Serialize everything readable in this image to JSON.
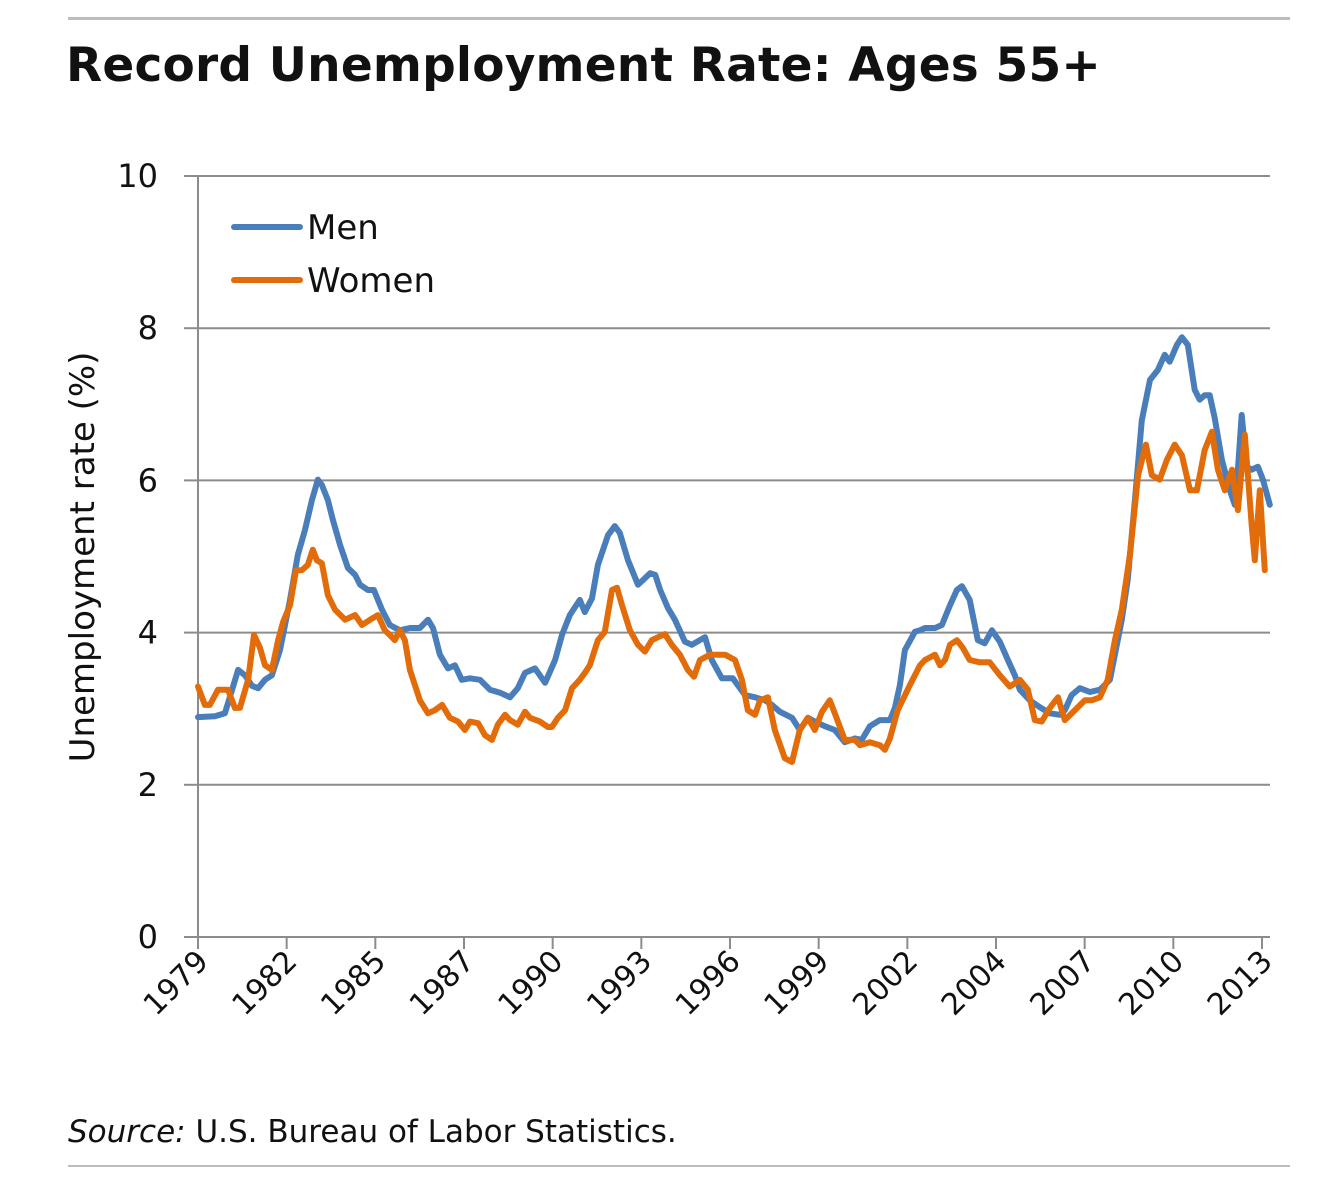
{
  "title": "Record Unemployment Rate: Ages 55+",
  "source": {
    "label": "Source:",
    "text": " U.S. Bureau of Labor Statistics."
  },
  "chart_data": {
    "type": "line",
    "title": "Record Unemployment Rate: Ages 55+",
    "xlabel": "",
    "ylabel": "Unemployment rate (%)",
    "ylim": [
      0,
      10
    ],
    "xlim": [
      1979,
      2013.3
    ],
    "yticks": [
      0,
      2,
      4,
      6,
      8,
      10
    ],
    "xtick_labels": [
      "1979",
      "1982",
      "1985",
      "1987",
      "1990",
      "1993",
      "1996",
      "1999",
      "2002",
      "2004",
      "2007",
      "2010",
      "2013"
    ],
    "grid": "horizontal",
    "legend_position": "top-left",
    "colors": {
      "Men": "#4a7ebb",
      "Women": "#e36c0a"
    },
    "series": [
      {
        "name": "Men",
        "points": [
          [
            1979.0,
            2.89
          ],
          [
            1979.54,
            2.9
          ],
          [
            1979.86,
            2.94
          ],
          [
            1980.09,
            3.25
          ],
          [
            1980.28,
            3.51
          ],
          [
            1980.5,
            3.44
          ],
          [
            1980.73,
            3.3
          ],
          [
            1980.92,
            3.27
          ],
          [
            1981.14,
            3.38
          ],
          [
            1981.36,
            3.44
          ],
          [
            1981.62,
            3.77
          ],
          [
            1981.94,
            4.43
          ],
          [
            1982.19,
            5.02
          ],
          [
            1982.42,
            5.35
          ],
          [
            1982.64,
            5.74
          ],
          [
            1982.83,
            6.01
          ],
          [
            1982.96,
            5.94
          ],
          [
            1983.15,
            5.74
          ],
          [
            1983.31,
            5.48
          ],
          [
            1983.54,
            5.15
          ],
          [
            1983.79,
            4.85
          ],
          [
            1984.02,
            4.76
          ],
          [
            1984.18,
            4.63
          ],
          [
            1984.43,
            4.56
          ],
          [
            1984.62,
            4.56
          ],
          [
            1984.88,
            4.3
          ],
          [
            1985.13,
            4.1
          ],
          [
            1985.45,
            4.03
          ],
          [
            1985.77,
            4.06
          ],
          [
            1986.09,
            4.06
          ],
          [
            1986.35,
            4.17
          ],
          [
            1986.51,
            4.06
          ],
          [
            1986.73,
            3.71
          ],
          [
            1986.99,
            3.53
          ],
          [
            1987.21,
            3.57
          ],
          [
            1987.43,
            3.38
          ],
          [
            1987.69,
            3.4
          ],
          [
            1988.01,
            3.38
          ],
          [
            1988.33,
            3.25
          ],
          [
            1988.65,
            3.21
          ],
          [
            1988.97,
            3.15
          ],
          [
            1989.22,
            3.27
          ],
          [
            1989.45,
            3.47
          ],
          [
            1989.77,
            3.53
          ],
          [
            1990.09,
            3.34
          ],
          [
            1990.41,
            3.64
          ],
          [
            1990.63,
            3.97
          ],
          [
            1990.88,
            4.23
          ],
          [
            1991.2,
            4.43
          ],
          [
            1991.36,
            4.27
          ],
          [
            1991.59,
            4.45
          ],
          [
            1991.78,
            4.89
          ],
          [
            1992.1,
            5.28
          ],
          [
            1992.32,
            5.4
          ],
          [
            1992.48,
            5.31
          ],
          [
            1992.74,
            4.95
          ],
          [
            1993.06,
            4.63
          ],
          [
            1993.22,
            4.69
          ],
          [
            1993.45,
            4.78
          ],
          [
            1993.61,
            4.76
          ],
          [
            1993.77,
            4.56
          ],
          [
            1994.02,
            4.32
          ],
          [
            1994.24,
            4.17
          ],
          [
            1994.56,
            3.88
          ],
          [
            1994.78,
            3.84
          ],
          [
            1995.2,
            3.94
          ],
          [
            1995.42,
            3.64
          ],
          [
            1995.74,
            3.4
          ],
          [
            1996.09,
            3.4
          ],
          [
            1996.48,
            3.18
          ],
          [
            1996.8,
            3.15
          ],
          [
            1997.12,
            3.11
          ],
          [
            1997.34,
            3.05
          ],
          [
            1997.59,
            2.96
          ],
          [
            1997.98,
            2.88
          ],
          [
            1998.23,
            2.72
          ],
          [
            1998.49,
            2.88
          ],
          [
            1998.71,
            2.83
          ],
          [
            1999.03,
            2.77
          ],
          [
            1999.35,
            2.72
          ],
          [
            1999.67,
            2.56
          ],
          [
            1999.99,
            2.61
          ],
          [
            2000.21,
            2.59
          ],
          [
            2000.47,
            2.77
          ],
          [
            2000.79,
            2.85
          ],
          [
            2001.11,
            2.85
          ],
          [
            2001.27,
            3.01
          ],
          [
            2001.43,
            3.31
          ],
          [
            2001.59,
            3.77
          ],
          [
            2001.91,
            4.01
          ],
          [
            2002.07,
            4.03
          ],
          [
            2002.23,
            4.06
          ],
          [
            2002.55,
            4.06
          ],
          [
            2002.77,
            4.1
          ],
          [
            2003.03,
            4.36
          ],
          [
            2003.25,
            4.56
          ],
          [
            2003.41,
            4.61
          ],
          [
            2003.66,
            4.43
          ],
          [
            2003.92,
            3.9
          ],
          [
            2004.14,
            3.86
          ],
          [
            2004.37,
            4.03
          ],
          [
            2004.62,
            3.88
          ],
          [
            2004.88,
            3.64
          ],
          [
            2005.1,
            3.44
          ],
          [
            2005.26,
            3.25
          ],
          [
            2005.58,
            3.11
          ],
          [
            2005.9,
            3.02
          ],
          [
            2006.22,
            2.94
          ],
          [
            2006.54,
            2.92
          ],
          [
            2006.7,
            2.98
          ],
          [
            2006.92,
            3.18
          ],
          [
            2007.18,
            3.27
          ],
          [
            2007.5,
            3.22
          ],
          [
            2007.82,
            3.25
          ],
          [
            2008.14,
            3.38
          ],
          [
            2008.3,
            3.71
          ],
          [
            2008.52,
            4.17
          ],
          [
            2008.71,
            4.69
          ],
          [
            2008.94,
            5.74
          ],
          [
            2009.16,
            6.79
          ],
          [
            2009.42,
            7.32
          ],
          [
            2009.67,
            7.45
          ],
          [
            2009.89,
            7.65
          ],
          [
            2010.05,
            7.56
          ],
          [
            2010.28,
            7.78
          ],
          [
            2010.44,
            7.88
          ],
          [
            2010.63,
            7.78
          ],
          [
            2010.85,
            7.19
          ],
          [
            2011.01,
            7.06
          ],
          [
            2011.17,
            7.12
          ],
          [
            2011.33,
            7.12
          ],
          [
            2011.49,
            6.82
          ],
          [
            2011.72,
            6.27
          ],
          [
            2011.97,
            5.87
          ],
          [
            2012.13,
            5.68
          ],
          [
            2012.23,
            6.14
          ],
          [
            2012.35,
            6.86
          ],
          [
            2012.51,
            6.18
          ],
          [
            2012.67,
            6.14
          ],
          [
            2012.87,
            6.18
          ],
          [
            2013.03,
            6.01
          ],
          [
            2013.25,
            5.68
          ]
        ]
      },
      {
        "name": "Women",
        "points": [
          [
            1979.0,
            3.29
          ],
          [
            1979.22,
            3.05
          ],
          [
            1979.38,
            3.05
          ],
          [
            1979.64,
            3.25
          ],
          [
            1979.96,
            3.25
          ],
          [
            1980.18,
            3.01
          ],
          [
            1980.34,
            3.01
          ],
          [
            1980.6,
            3.38
          ],
          [
            1980.79,
            3.97
          ],
          [
            1980.98,
            3.8
          ],
          [
            1981.14,
            3.57
          ],
          [
            1981.36,
            3.51
          ],
          [
            1981.56,
            3.9
          ],
          [
            1981.72,
            4.14
          ],
          [
            1981.94,
            4.36
          ],
          [
            1982.13,
            4.82
          ],
          [
            1982.32,
            4.82
          ],
          [
            1982.51,
            4.89
          ],
          [
            1982.67,
            5.09
          ],
          [
            1982.8,
            4.95
          ],
          [
            1982.96,
            4.91
          ],
          [
            1983.15,
            4.49
          ],
          [
            1983.38,
            4.3
          ],
          [
            1983.7,
            4.17
          ],
          [
            1984.02,
            4.23
          ],
          [
            1984.24,
            4.1
          ],
          [
            1984.5,
            4.17
          ],
          [
            1984.75,
            4.23
          ],
          [
            1984.97,
            4.03
          ],
          [
            1985.13,
            3.97
          ],
          [
            1985.29,
            3.9
          ],
          [
            1985.45,
            4.03
          ],
          [
            1985.61,
            3.9
          ],
          [
            1985.77,
            3.51
          ],
          [
            1985.93,
            3.31
          ],
          [
            1986.09,
            3.11
          ],
          [
            1986.35,
            2.94
          ],
          [
            1986.57,
            2.98
          ],
          [
            1986.8,
            3.05
          ],
          [
            1987.05,
            2.88
          ],
          [
            1987.31,
            2.83
          ],
          [
            1987.53,
            2.72
          ],
          [
            1987.69,
            2.83
          ],
          [
            1987.95,
            2.81
          ],
          [
            1988.17,
            2.65
          ],
          [
            1988.39,
            2.59
          ],
          [
            1988.58,
            2.79
          ],
          [
            1988.81,
            2.92
          ],
          [
            1988.97,
            2.85
          ],
          [
            1989.22,
            2.79
          ],
          [
            1989.45,
            2.96
          ],
          [
            1989.61,
            2.88
          ],
          [
            1989.93,
            2.83
          ],
          [
            1990.18,
            2.76
          ],
          [
            1990.31,
            2.76
          ],
          [
            1990.5,
            2.88
          ],
          [
            1990.73,
            2.98
          ],
          [
            1990.95,
            3.27
          ],
          [
            1991.2,
            3.38
          ],
          [
            1991.36,
            3.47
          ],
          [
            1991.52,
            3.57
          ],
          [
            1991.78,
            3.9
          ],
          [
            1992.0,
            4.01
          ],
          [
            1992.23,
            4.56
          ],
          [
            1992.39,
            4.59
          ],
          [
            1992.55,
            4.36
          ],
          [
            1992.8,
            4.03
          ],
          [
            1993.06,
            3.84
          ],
          [
            1993.28,
            3.75
          ],
          [
            1993.5,
            3.9
          ],
          [
            1993.7,
            3.94
          ],
          [
            1993.92,
            3.98
          ],
          [
            1994.14,
            3.84
          ],
          [
            1994.4,
            3.71
          ],
          [
            1994.65,
            3.51
          ],
          [
            1994.85,
            3.42
          ],
          [
            1995.04,
            3.64
          ],
          [
            1995.36,
            3.71
          ],
          [
            1995.61,
            3.71
          ],
          [
            1995.84,
            3.71
          ],
          [
            1996.16,
            3.64
          ],
          [
            1996.38,
            3.38
          ],
          [
            1996.57,
            2.98
          ],
          [
            1996.8,
            2.92
          ],
          [
            1996.96,
            3.11
          ],
          [
            1997.21,
            3.15
          ],
          [
            1997.43,
            2.72
          ],
          [
            1997.75,
            2.35
          ],
          [
            1997.98,
            2.3
          ],
          [
            1998.23,
            2.72
          ],
          [
            1998.49,
            2.88
          ],
          [
            1998.71,
            2.72
          ],
          [
            1998.94,
            2.96
          ],
          [
            1999.19,
            3.11
          ],
          [
            1999.35,
            2.94
          ],
          [
            1999.67,
            2.59
          ],
          [
            1999.99,
            2.59
          ],
          [
            2000.15,
            2.52
          ],
          [
            2000.47,
            2.56
          ],
          [
            2000.79,
            2.52
          ],
          [
            2000.95,
            2.46
          ],
          [
            2001.11,
            2.61
          ],
          [
            2001.36,
            2.98
          ],
          [
            2001.75,
            3.31
          ],
          [
            2002.07,
            3.57
          ],
          [
            2002.23,
            3.64
          ],
          [
            2002.55,
            3.71
          ],
          [
            2002.71,
            3.57
          ],
          [
            2002.87,
            3.64
          ],
          [
            2003.03,
            3.84
          ],
          [
            2003.25,
            3.9
          ],
          [
            2003.44,
            3.8
          ],
          [
            2003.66,
            3.64
          ],
          [
            2003.98,
            3.61
          ],
          [
            2004.3,
            3.61
          ],
          [
            2004.62,
            3.44
          ],
          [
            2004.94,
            3.29
          ],
          [
            2005.26,
            3.38
          ],
          [
            2005.52,
            3.25
          ],
          [
            2005.74,
            2.85
          ],
          [
            2005.96,
            2.83
          ],
          [
            2006.22,
            3.01
          ],
          [
            2006.48,
            3.15
          ],
          [
            2006.7,
            2.85
          ],
          [
            2007.02,
            2.98
          ],
          [
            2007.34,
            3.11
          ],
          [
            2007.56,
            3.11
          ],
          [
            2007.82,
            3.15
          ],
          [
            2008.07,
            3.38
          ],
          [
            2008.3,
            3.9
          ],
          [
            2008.52,
            4.3
          ],
          [
            2008.78,
            5.02
          ],
          [
            2009.04,
            6.07
          ],
          [
            2009.29,
            6.47
          ],
          [
            2009.48,
            6.07
          ],
          [
            2009.73,
            6.01
          ],
          [
            2009.96,
            6.27
          ],
          [
            2010.21,
            6.47
          ],
          [
            2010.44,
            6.33
          ],
          [
            2010.7,
            5.87
          ],
          [
            2010.92,
            5.87
          ],
          [
            2011.17,
            6.4
          ],
          [
            2011.4,
            6.64
          ],
          [
            2011.59,
            6.14
          ],
          [
            2011.81,
            5.87
          ],
          [
            2012.04,
            6.14
          ],
          [
            2012.23,
            5.61
          ],
          [
            2012.45,
            6.6
          ],
          [
            2012.67,
            5.41
          ],
          [
            2012.77,
            4.95
          ],
          [
            2012.93,
            5.87
          ],
          [
            2013.09,
            4.82
          ]
        ]
      }
    ]
  }
}
